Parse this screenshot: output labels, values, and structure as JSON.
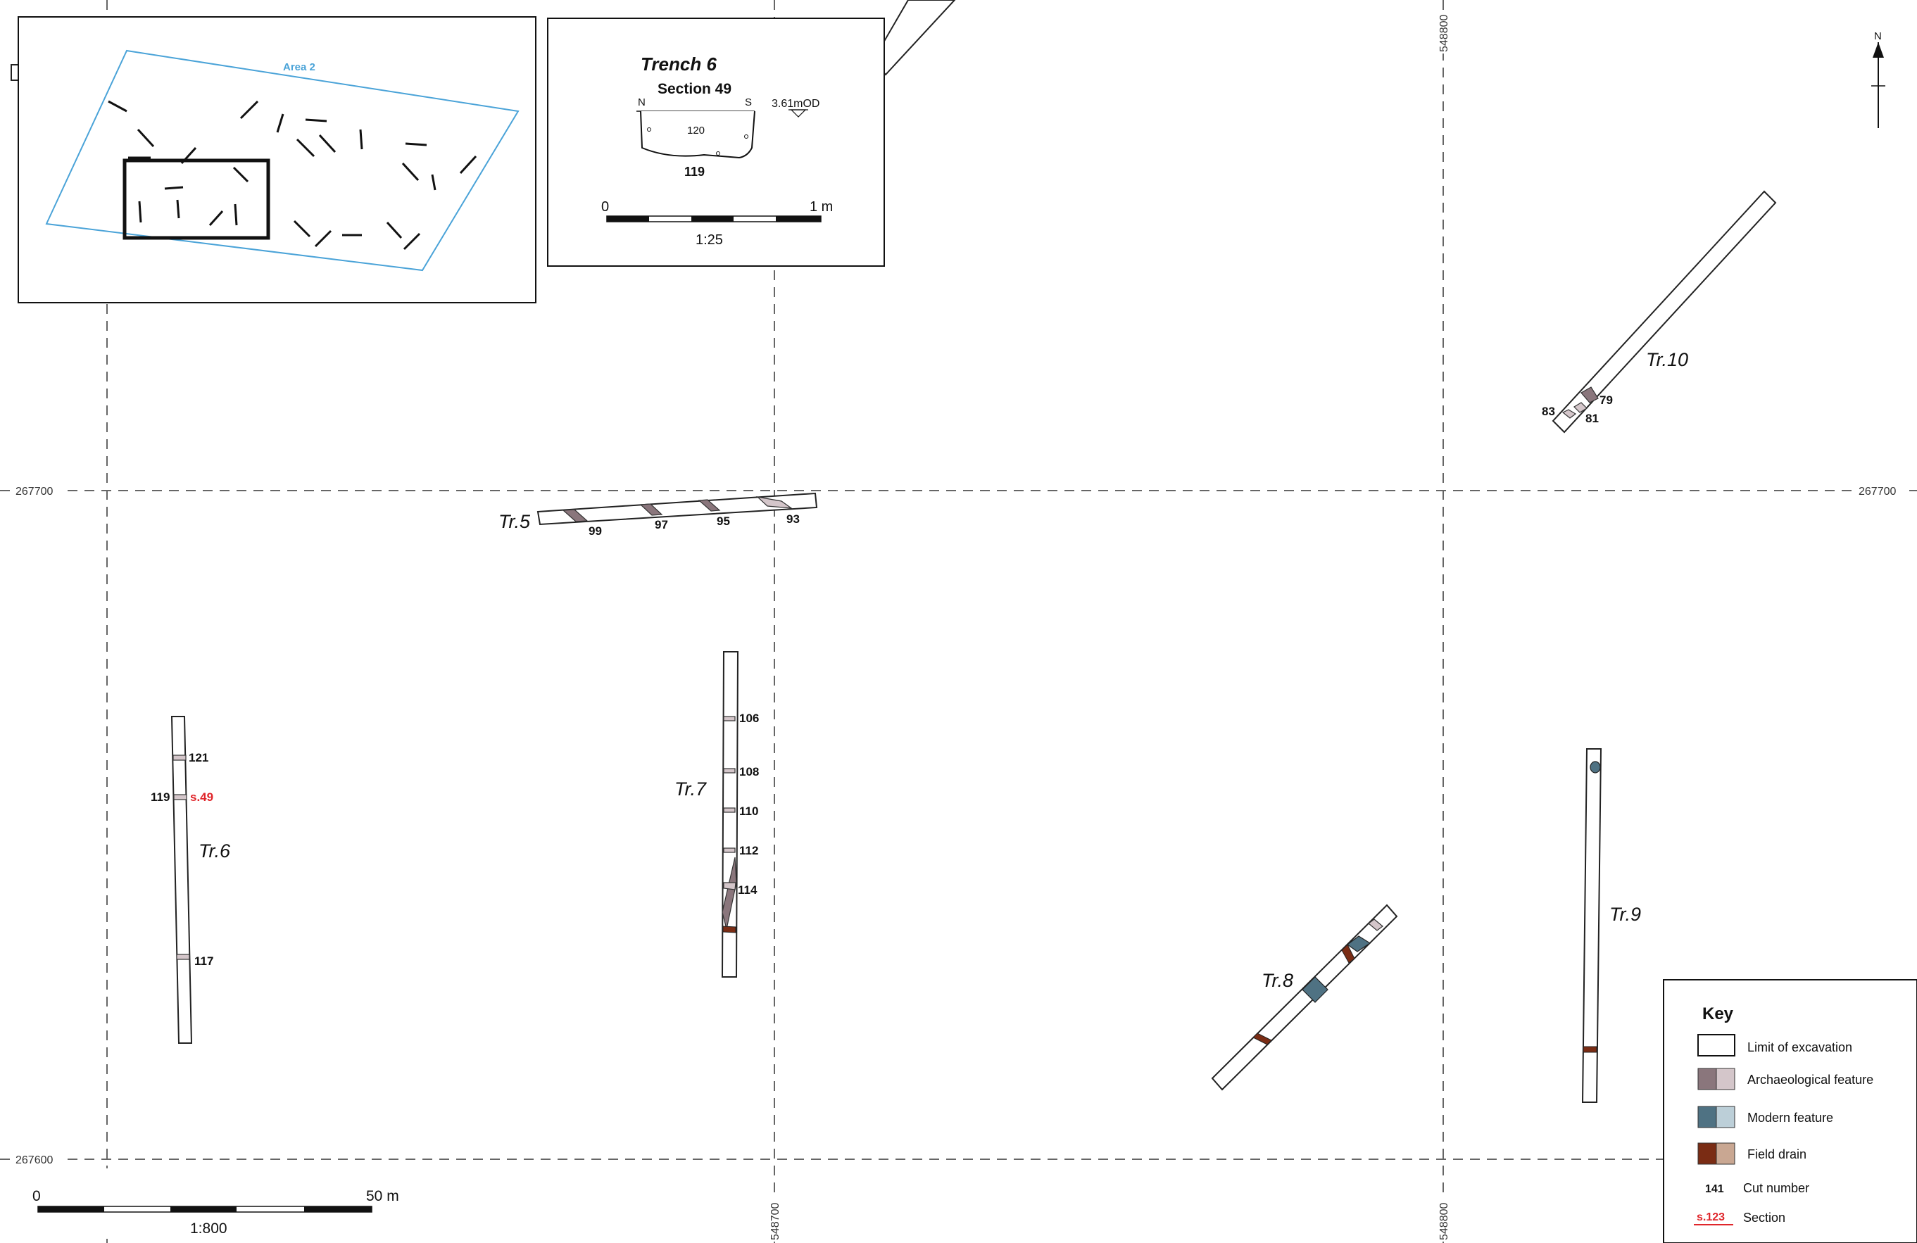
{
  "grid": {
    "northings": [
      "267700",
      "267600"
    ],
    "eastings": [
      "548800",
      "548700",
      "548800"
    ]
  },
  "trenches": {
    "tr5": "Tr.5",
    "tr6": "Tr.6",
    "tr7": "Tr.7",
    "tr8": "Tr.8",
    "tr9": "Tr.9",
    "tr10": "Tr.10"
  },
  "cuts": {
    "c79": "79",
    "c81": "81",
    "c83": "83",
    "c93": "93",
    "c95": "95",
    "c97": "97",
    "c99": "99",
    "c106": "106",
    "c108": "108",
    "c110": "110",
    "c112": "112",
    "c114": "114",
    "c117": "117",
    "c119": "119",
    "c121": "121"
  },
  "section_marker": "s.49",
  "inset_location": {
    "area_label": "Area 2"
  },
  "inset_section": {
    "title": "Trench 6",
    "subtitle": "Section 49",
    "north": "N",
    "south": "S",
    "level": "3.61mOD",
    "fill": "120",
    "cut": "119",
    "scale_start": "0",
    "scale_end": "1 m",
    "scale_ratio": "1:25"
  },
  "main_scale": {
    "start": "0",
    "end": "50 m",
    "ratio": "1:800"
  },
  "north_arrow": "N",
  "key": {
    "title": "Key",
    "items": {
      "limit": "Limit of excavation",
      "arch": "Archaeological feature",
      "modern": "Modern feature",
      "drain": "Field drain",
      "cut_number": "Cut number",
      "section": "Section"
    },
    "cut_sample": "141",
    "section_sample": "s.123"
  },
  "colors": {
    "area_outline": "#4aa3d8",
    "archaeological_dark": "#8a767c",
    "archaeological_light": "#d4c6ca",
    "modern_dark": "#4f7283",
    "modern_light": "#bccfd8",
    "drain_dark": "#7a2c14",
    "drain_light": "#c9a792",
    "section_red": "#e0262b"
  }
}
